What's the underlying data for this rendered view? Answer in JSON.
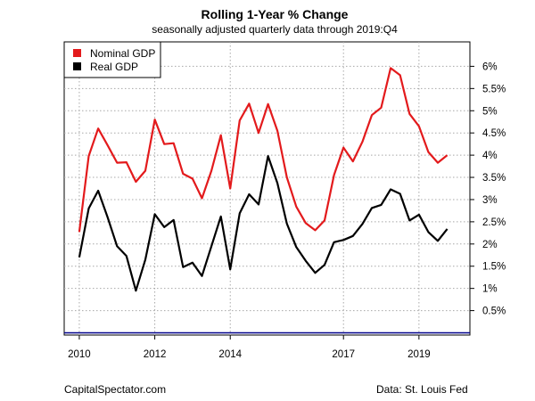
{
  "chart_data": {
    "type": "line",
    "title": "Rolling 1-Year % Change",
    "subtitle": "seasonally adjusted quarterly data through 2019:Q4",
    "x_ticks": [
      "2010",
      "2012",
      "2014",
      "2017",
      "2019"
    ],
    "x_tick_positions": [
      2010.0,
      2012.0,
      2014.0,
      2017.0,
      2019.0
    ],
    "y_ticks": [
      "0.5%",
      "1%",
      "1.5%",
      "2%",
      "2.5%",
      "3%",
      "3.5%",
      "4%",
      "4.5%",
      "5%",
      "5.5%",
      "6%"
    ],
    "y_tick_values": [
      0.5,
      1,
      1.5,
      2,
      2.5,
      3,
      3.5,
      4,
      4.5,
      5,
      5.5,
      6
    ],
    "ylim": [
      -0.05,
      6.55
    ],
    "xlim": [
      2009.6,
      2020.35
    ],
    "grid": true,
    "legend_position": "top-left",
    "baseline_value": 0,
    "baseline_color": "#00008b",
    "x": [
      "2010:Q1",
      "2010:Q2",
      "2010:Q3",
      "2010:Q4",
      "2011:Q1",
      "2011:Q2",
      "2011:Q3",
      "2011:Q4",
      "2012:Q1",
      "2012:Q2",
      "2012:Q3",
      "2012:Q4",
      "2013:Q1",
      "2013:Q2",
      "2013:Q3",
      "2013:Q4",
      "2014:Q1",
      "2014:Q2",
      "2014:Q3",
      "2014:Q4",
      "2015:Q1",
      "2015:Q2",
      "2015:Q3",
      "2015:Q4",
      "2016:Q1",
      "2016:Q2",
      "2016:Q3",
      "2016:Q4",
      "2017:Q1",
      "2017:Q2",
      "2017:Q3",
      "2017:Q4",
      "2018:Q1",
      "2018:Q2",
      "2018:Q3",
      "2018:Q4",
      "2019:Q1",
      "2019:Q2",
      "2019:Q3",
      "2019:Q4"
    ],
    "series": [
      {
        "name": "Nominal GDP",
        "color": "#e31a1c",
        "values": [
          2.27,
          3.98,
          4.6,
          4.22,
          3.83,
          3.84,
          3.4,
          3.65,
          4.8,
          4.25,
          4.27,
          3.58,
          3.47,
          3.03,
          3.65,
          4.45,
          3.25,
          4.78,
          5.16,
          4.5,
          5.15,
          4.55,
          3.5,
          2.84,
          2.47,
          2.31,
          2.53,
          3.55,
          4.17,
          3.86,
          4.3,
          4.9,
          5.07,
          5.96,
          5.8,
          4.93,
          4.65,
          4.07,
          3.83,
          4.0
        ]
      },
      {
        "name": "Real GDP",
        "color": "#000000",
        "values": [
          1.7,
          2.8,
          3.2,
          2.6,
          1.95,
          1.73,
          0.95,
          1.65,
          2.67,
          2.38,
          2.54,
          1.48,
          1.58,
          1.28,
          1.95,
          2.62,
          1.43,
          2.69,
          3.12,
          2.89,
          3.98,
          3.37,
          2.46,
          1.93,
          1.62,
          1.35,
          1.53,
          2.04,
          2.09,
          2.18,
          2.45,
          2.81,
          2.88,
          3.23,
          3.13,
          2.53,
          2.66,
          2.27,
          2.07,
          2.34
        ]
      }
    ]
  },
  "footer": {
    "left": "CapitalSpectator.com",
    "right": "Data: St. Louis Fed"
  }
}
